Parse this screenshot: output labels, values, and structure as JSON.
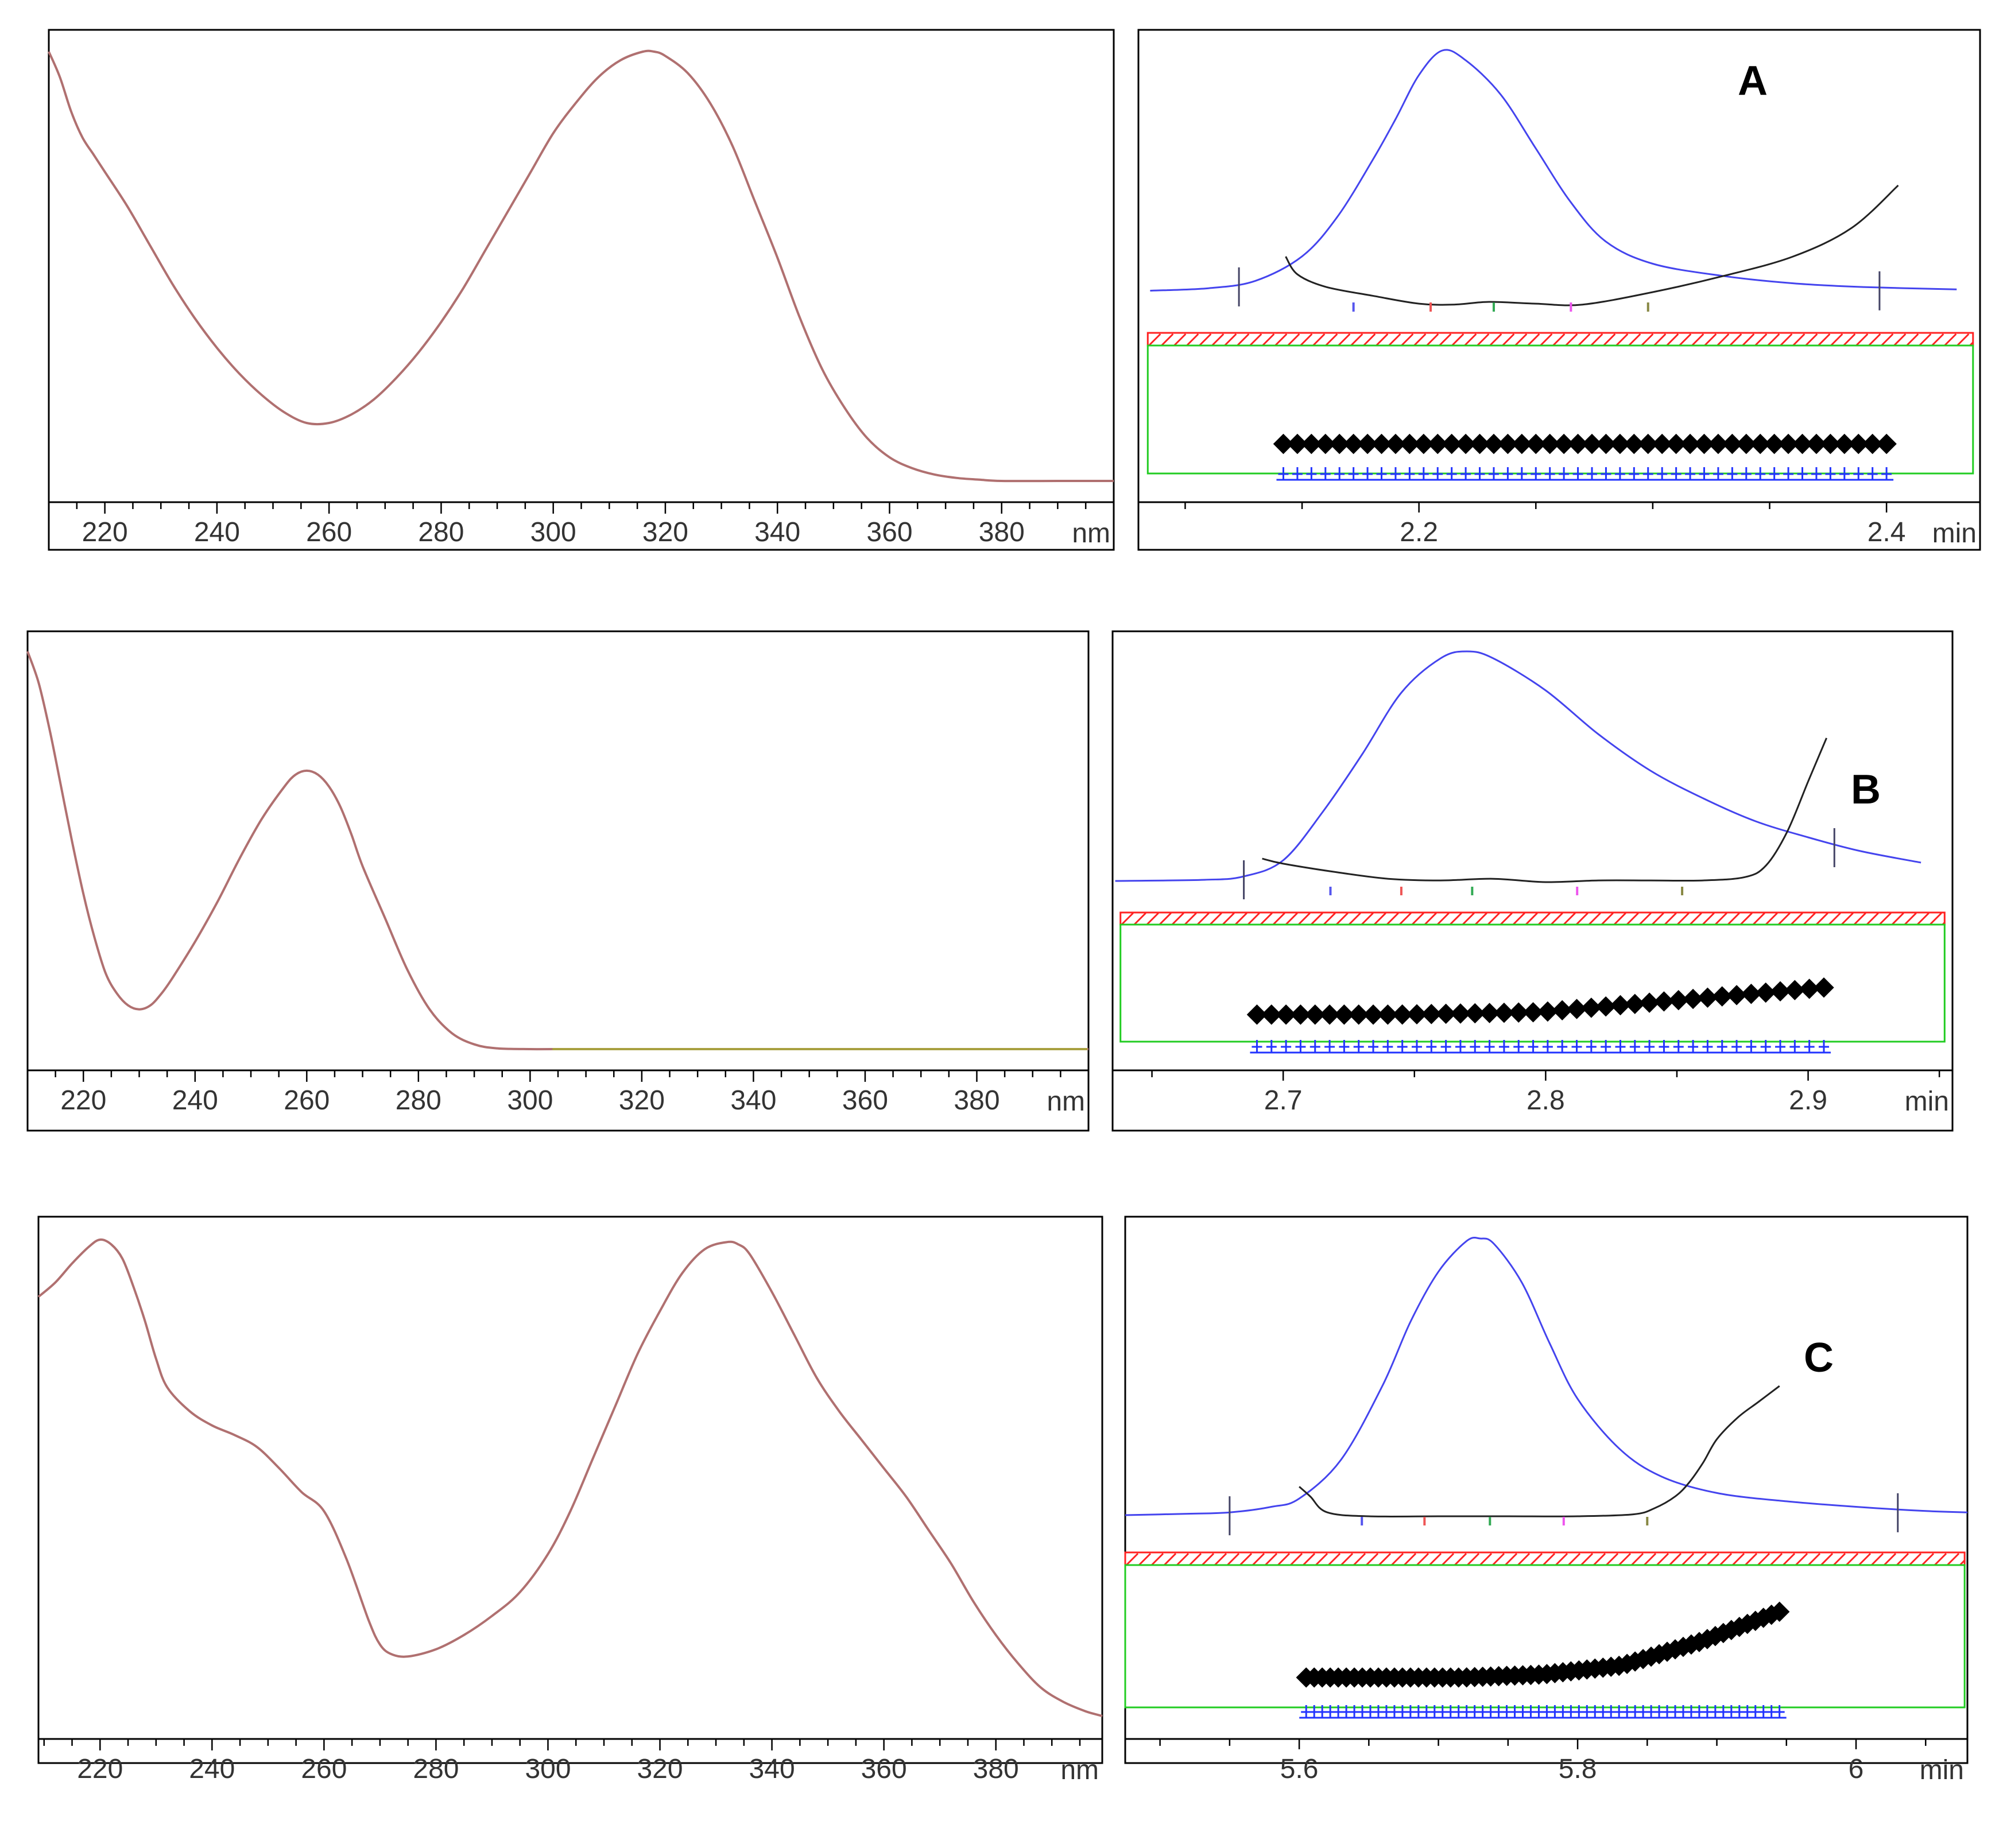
{
  "colors": {
    "spectrum": "#b07070",
    "spectrum_tail_b": "#a8a040",
    "chromatogram": "#4444ee",
    "purity_curve": "#222222",
    "threshold_band": "#ff2222",
    "purity_box": "#22cc22",
    "diamond_markers": "#000000",
    "plus_markers": "#2233ff",
    "axis": "#000000",
    "text": "#333333"
  },
  "chart_data": [
    {
      "id": "spectrum-a",
      "type": "line",
      "title": "",
      "xlabel": "",
      "ylabel": "",
      "unit_label": "nm",
      "xlim": [
        210,
        400
      ],
      "ylim": [
        0,
        1
      ],
      "xticks": [
        220,
        240,
        260,
        280,
        300,
        320,
        340,
        360,
        380
      ],
      "xtick_labels": [
        "220",
        "240",
        "260",
        "280",
        "300",
        "320",
        "340",
        "360",
        "380"
      ],
      "series": [
        {
          "name": "UV spectrum",
          "x": [
            210,
            212,
            214,
            216,
            218,
            220,
            224,
            228,
            232,
            236,
            240,
            244,
            248,
            252,
            256,
            260,
            264,
            268,
            272,
            276,
            280,
            284,
            288,
            292,
            296,
            300,
            304,
            308,
            312,
            316,
            318,
            320,
            324,
            328,
            332,
            336,
            340,
            344,
            348,
            352,
            356,
            360,
            364,
            368,
            372,
            376,
            380,
            390,
            400
          ],
          "y": [
            1.0,
            0.94,
            0.86,
            0.8,
            0.76,
            0.72,
            0.64,
            0.55,
            0.46,
            0.38,
            0.31,
            0.25,
            0.2,
            0.16,
            0.135,
            0.135,
            0.155,
            0.19,
            0.24,
            0.3,
            0.37,
            0.45,
            0.54,
            0.63,
            0.72,
            0.81,
            0.88,
            0.94,
            0.98,
            1.0,
            1.0,
            0.99,
            0.95,
            0.88,
            0.78,
            0.65,
            0.52,
            0.38,
            0.26,
            0.17,
            0.1,
            0.055,
            0.03,
            0.015,
            0.007,
            0.003,
            0.0,
            0.0,
            0.0
          ]
        }
      ]
    },
    {
      "id": "chrom-a",
      "type": "line",
      "title": "",
      "panel_label": "A",
      "unit_label": "min",
      "xlim": [
        2.08,
        2.44
      ],
      "ylim": [
        0,
        1
      ],
      "xticks": [
        2.1,
        2.15,
        2.2,
        2.25,
        2.3,
        2.35,
        2.4
      ],
      "xtick_labels": [
        "",
        "",
        "2.2",
        "",
        "",
        "",
        "2.4"
      ],
      "peak_start": 2.123,
      "peak_end": 2.397,
      "series": [
        {
          "name": "chromatogram",
          "x": [
            2.085,
            2.11,
            2.13,
            2.15,
            2.165,
            2.18,
            2.19,
            2.2,
            2.21,
            2.22,
            2.235,
            2.25,
            2.265,
            2.28,
            2.3,
            2.33,
            2.36,
            2.39,
            2.43
          ],
          "y": [
            0.02,
            0.03,
            0.06,
            0.16,
            0.32,
            0.55,
            0.72,
            0.9,
            1.0,
            0.96,
            0.82,
            0.6,
            0.38,
            0.22,
            0.13,
            0.08,
            0.05,
            0.035,
            0.025
          ]
        },
        {
          "name": "purity curve",
          "x": [
            2.143,
            2.148,
            2.16,
            2.18,
            2.2,
            2.215,
            2.23,
            2.25,
            2.27,
            2.3,
            2.33,
            2.36,
            2.385,
            2.405
          ],
          "y": [
            0.3,
            0.2,
            0.13,
            0.08,
            0.035,
            0.03,
            0.045,
            0.035,
            0.03,
            0.1,
            0.19,
            0.3,
            0.46,
            0.7
          ]
        }
      ],
      "spectrum_marks_x": [
        2.172,
        2.205,
        2.232,
        2.265,
        2.298
      ],
      "threshold_band": {
        "x_start": 2.084,
        "x_end": 2.437
      },
      "purity_points": {
        "x_start": 2.142,
        "x_end": 2.4,
        "count": 44,
        "diamond_offset": [
          0.055,
          0.055,
          0.055,
          0.055,
          0.055
        ]
      }
    },
    {
      "id": "spectrum-b",
      "type": "line",
      "title": "",
      "xlabel": "",
      "ylabel": "",
      "unit_label": "nm",
      "xlim": [
        210,
        400
      ],
      "ylim": [
        0,
        1
      ],
      "xticks": [
        220,
        240,
        260,
        280,
        300,
        320,
        340,
        360,
        380
      ],
      "xtick_labels": [
        "220",
        "240",
        "260",
        "280",
        "300",
        "320",
        "340",
        "360",
        "380"
      ],
      "series": [
        {
          "name": "UV spectrum",
          "x": [
            210,
            212,
            214,
            216,
            218,
            220,
            222,
            224,
            226,
            228,
            230,
            232,
            234,
            236,
            240,
            244,
            248,
            252,
            256,
            258,
            260,
            262,
            264,
            266,
            268,
            270,
            274,
            278,
            282,
            286,
            290,
            294,
            300,
            304,
            320,
            360,
            400
          ],
          "y": [
            1.0,
            0.92,
            0.8,
            0.66,
            0.52,
            0.39,
            0.28,
            0.19,
            0.14,
            0.11,
            0.1,
            0.11,
            0.14,
            0.18,
            0.27,
            0.37,
            0.48,
            0.58,
            0.66,
            0.69,
            0.7,
            0.69,
            0.66,
            0.61,
            0.54,
            0.46,
            0.33,
            0.2,
            0.1,
            0.04,
            0.012,
            0.002,
            0.0,
            0.0,
            0.0,
            0.0,
            0.0
          ]
        }
      ]
    },
    {
      "id": "chrom-b",
      "type": "line",
      "title": "",
      "panel_label": "B",
      "unit_label": "min",
      "xlim": [
        2.635,
        2.955
      ],
      "ylim": [
        0,
        1
      ],
      "xticks": [
        2.65,
        2.7,
        2.75,
        2.8,
        2.85,
        2.9,
        2.95
      ],
      "xtick_labels": [
        "",
        "2.7",
        "",
        "2.8",
        "",
        "2.9",
        ""
      ],
      "peak_start": 2.685,
      "peak_end": 2.91,
      "series": [
        {
          "name": "chromatogram",
          "x": [
            2.636,
            2.67,
            2.685,
            2.7,
            2.715,
            2.73,
            2.745,
            2.76,
            2.77,
            2.78,
            2.8,
            2.82,
            2.84,
            2.86,
            2.88,
            2.9,
            2.92,
            2.943
          ],
          "y": [
            0.0,
            0.005,
            0.02,
            0.09,
            0.3,
            0.55,
            0.82,
            0.97,
            1.0,
            0.97,
            0.83,
            0.64,
            0.48,
            0.36,
            0.26,
            0.19,
            0.13,
            0.08
          ]
        },
        {
          "name": "purity curve",
          "x": [
            2.692,
            2.7,
            2.72,
            2.74,
            2.76,
            2.78,
            2.8,
            2.82,
            2.84,
            2.86,
            2.876,
            2.884,
            2.892,
            2.9,
            2.907
          ],
          "y": [
            0.14,
            0.11,
            0.06,
            0.02,
            0.01,
            0.02,
            0.0,
            0.01,
            0.01,
            0.01,
            0.03,
            0.1,
            0.3,
            0.6,
            0.86
          ]
        }
      ],
      "spectrum_marks_x": [
        2.718,
        2.745,
        2.772,
        2.812,
        2.852
      ],
      "threshold_band": {
        "x_start": 2.638,
        "x_end": 2.952
      },
      "purity_points": {
        "x_start": 2.69,
        "x_end": 2.906,
        "count": 40,
        "diamond_offset": [
          0.055,
          0.055,
          0.06,
          0.085,
          0.11
        ]
      }
    },
    {
      "id": "spectrum-c",
      "type": "line",
      "title": "",
      "xlabel": "",
      "ylabel": "",
      "unit_label": "nm",
      "xlim": [
        209,
        399
      ],
      "ylim": [
        0,
        1
      ],
      "xticks": [
        220,
        240,
        260,
        280,
        300,
        320,
        340,
        360,
        380
      ],
      "xtick_labels": [
        "220",
        "240",
        "260",
        "280",
        "300",
        "320",
        "340",
        "360",
        "380"
      ],
      "series": [
        {
          "name": "UV spectrum",
          "x": [
            209,
            212,
            215,
            218,
            220,
            222,
            224,
            226,
            228,
            230,
            232,
            236,
            240,
            244,
            248,
            252,
            256,
            260,
            264,
            268,
            270,
            272,
            275,
            280,
            285,
            290,
            295,
            300,
            304,
            308,
            312,
            316,
            320,
            324,
            328,
            332,
            334,
            336,
            340,
            344,
            348,
            352,
            356,
            360,
            364,
            368,
            372,
            376,
            380,
            384,
            388,
            392,
            396,
            399
          ],
          "y": [
            0.88,
            0.91,
            0.95,
            0.985,
            1.0,
            0.99,
            0.96,
            0.9,
            0.83,
            0.75,
            0.69,
            0.64,
            0.61,
            0.59,
            0.565,
            0.52,
            0.47,
            0.43,
            0.33,
            0.2,
            0.15,
            0.13,
            0.125,
            0.14,
            0.17,
            0.21,
            0.26,
            0.34,
            0.43,
            0.54,
            0.65,
            0.76,
            0.85,
            0.93,
            0.98,
            0.995,
            0.99,
            0.97,
            0.89,
            0.8,
            0.71,
            0.64,
            0.58,
            0.52,
            0.46,
            0.39,
            0.32,
            0.24,
            0.17,
            0.11,
            0.06,
            0.03,
            0.01,
            0.0
          ]
        }
      ]
    },
    {
      "id": "chrom-c",
      "type": "line",
      "title": "",
      "panel_label": "C",
      "unit_label": "min",
      "xlim": [
        5.475,
        6.08
      ],
      "ylim": [
        0,
        1
      ],
      "xticks": [
        5.5,
        5.55,
        5.6,
        5.65,
        5.7,
        5.75,
        5.8,
        5.85,
        5.9,
        5.95,
        6.0,
        6.05
      ],
      "xtick_labels": [
        "",
        "",
        "5.6",
        "",
        "",
        "",
        "5.8",
        "",
        "",
        "",
        "6",
        ""
      ],
      "peak_start": 5.55,
      "peak_end": 6.03,
      "series": [
        {
          "name": "chromatogram",
          "x": [
            5.475,
            5.52,
            5.55,
            5.58,
            5.6,
            5.63,
            5.66,
            5.68,
            5.7,
            5.72,
            5.73,
            5.74,
            5.76,
            5.78,
            5.8,
            5.83,
            5.86,
            5.9,
            5.95,
            6.0,
            6.05,
            6.08
          ],
          "y": [
            0.0,
            0.005,
            0.01,
            0.03,
            0.06,
            0.2,
            0.47,
            0.7,
            0.88,
            0.99,
            1.0,
            0.98,
            0.84,
            0.62,
            0.42,
            0.24,
            0.14,
            0.08,
            0.05,
            0.03,
            0.015,
            0.01
          ]
        },
        {
          "name": "purity curve",
          "x": [
            5.6,
            5.608,
            5.62,
            5.65,
            5.7,
            5.75,
            5.8,
            5.84,
            5.855,
            5.87,
            5.88,
            5.89,
            5.9,
            5.915,
            5.93,
            5.945
          ],
          "y": [
            0.15,
            0.1,
            0.02,
            0.0,
            0.0,
            0.0,
            0.0,
            0.01,
            0.04,
            0.1,
            0.17,
            0.27,
            0.39,
            0.5,
            0.58,
            0.66
          ]
        }
      ],
      "spectrum_marks_x": [
        5.645,
        5.69,
        5.737,
        5.79,
        5.85
      ],
      "threshold_band": {
        "x_start": 5.475,
        "x_end": 6.078
      },
      "purity_points": {
        "x_start": 5.605,
        "x_end": 5.945,
        "count": 60,
        "diamond_offset": [
          0.05,
          0.05,
          0.05,
          0.055,
          0.07,
          0.11,
          0.16
        ]
      }
    }
  ]
}
